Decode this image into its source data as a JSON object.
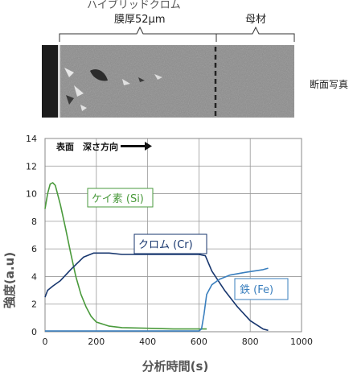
{
  "header": {
    "hybrid_label": "ハイブリッドクロム",
    "thickness_label": "膜厚52μm",
    "base_label": "母材",
    "photo_label": "断面写真"
  },
  "colors": {
    "si": "#4a9a3c",
    "cr": "#17366e",
    "fe": "#3a7fbe",
    "grid": "#9a9a9a"
  },
  "chart_data": {
    "type": "line",
    "xlabel": "分析時間(s)",
    "ylabel": "強度(a.u)",
    "xlim": [
      0,
      1000
    ],
    "ylim": [
      0,
      14
    ],
    "xticks": [
      0,
      200,
      400,
      600,
      800,
      1000
    ],
    "yticks": [
      0,
      2,
      4,
      6,
      8,
      10,
      12,
      14
    ],
    "grid": true,
    "annotation": "表面　深さ方向",
    "series": [
      {
        "name": "ケイ素 (Si)",
        "x": [
          0,
          10,
          20,
          30,
          40,
          60,
          80,
          100,
          120,
          140,
          160,
          180,
          200,
          250,
          300,
          400,
          500,
          600,
          630
        ],
        "y": [
          8.9,
          10.0,
          10.7,
          10.8,
          10.6,
          9.2,
          7.5,
          5.7,
          4.0,
          2.7,
          1.8,
          1.1,
          0.7,
          0.4,
          0.3,
          0.25,
          0.2,
          0.2,
          0.2
        ]
      },
      {
        "name": "クロム (Cr)",
        "x": [
          0,
          10,
          30,
          60,
          100,
          150,
          190,
          250,
          300,
          400,
          500,
          600,
          625,
          650,
          700,
          750,
          800,
          850,
          870
        ],
        "y": [
          2.5,
          3.0,
          3.3,
          3.7,
          4.5,
          5.4,
          5.7,
          5.7,
          5.6,
          5.6,
          5.6,
          5.6,
          5.5,
          4.4,
          3.0,
          1.8,
          0.8,
          0.2,
          0.1
        ]
      },
      {
        "name": "鉄 (Fe)",
        "x": [
          0,
          300,
          600,
          610,
          620,
          630,
          650,
          680,
          720,
          780,
          850,
          870
        ],
        "y": [
          0.05,
          0.05,
          0.05,
          0.2,
          1.3,
          2.7,
          3.4,
          3.8,
          4.1,
          4.3,
          4.5,
          4.6
        ]
      }
    ]
  }
}
